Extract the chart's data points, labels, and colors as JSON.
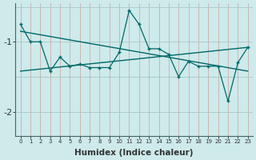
{
  "x": [
    0,
    1,
    2,
    3,
    4,
    5,
    6,
    7,
    8,
    9,
    10,
    11,
    12,
    13,
    14,
    15,
    16,
    17,
    18,
    19,
    20,
    21,
    22,
    23
  ],
  "y_main": [
    -0.75,
    -1.0,
    -1.0,
    -1.42,
    -1.22,
    -1.35,
    -1.32,
    -1.37,
    -1.37,
    -1.37,
    -1.15,
    -0.55,
    -0.75,
    -1.1,
    -1.1,
    -1.18,
    -1.5,
    -1.28,
    -1.35,
    -1.35,
    -1.35,
    -1.85,
    -1.3,
    -1.08
  ],
  "y_trend1_x": [
    0,
    23
  ],
  "y_trend1_y": [
    -0.85,
    -1.42
  ],
  "y_trend2_x": [
    0,
    23
  ],
  "y_trend2_y": [
    -1.42,
    -1.08
  ],
  "bg_color": "#ceeaea",
  "line_color": "#006868",
  "vgrid_color": "#c8a0a0",
  "hgrid_color": "#a8c8c8",
  "text_color": "#333333",
  "xlabel": "Humidex (Indice chaleur)",
  "ylim": [
    -2.35,
    -0.45
  ],
  "yticks": [
    -2.0,
    -1.0
  ],
  "xlim": [
    -0.5,
    23.5
  ]
}
